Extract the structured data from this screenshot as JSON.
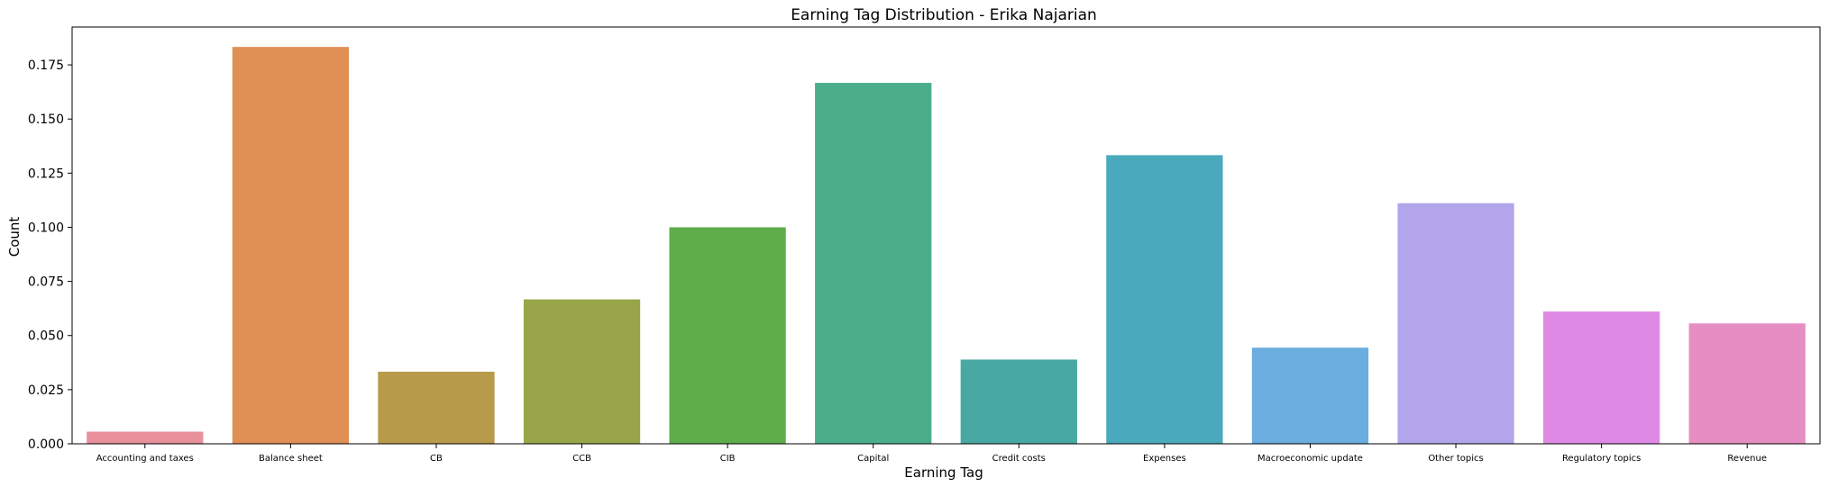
{
  "chart_data": {
    "type": "bar",
    "title": "Earning Tag Distribution - Erika Najarian",
    "xlabel": "Earning Tag",
    "ylabel": "Count",
    "categories": [
      "Accounting and taxes",
      "Balance sheet",
      "CB",
      "CCB",
      "CIB",
      "Capital",
      "Credit costs",
      "Expenses",
      "Macroeconomic update",
      "Other topics",
      "Regulatory topics",
      "Revenue"
    ],
    "values": [
      0.0056,
      0.1833,
      0.0333,
      0.0667,
      0.1,
      0.1667,
      0.0389,
      0.1333,
      0.0444,
      0.1111,
      0.0611,
      0.0556
    ],
    "colors": [
      "#e8909b",
      "#e08f55",
      "#b79a4a",
      "#98a548",
      "#5fad4a",
      "#4aae8a",
      "#48a9a2",
      "#4ba9bd",
      "#6aadde",
      "#b3a5eb",
      "#df8be6",
      "#e68ec3"
    ],
    "yticks": [
      "0.000",
      "0.025",
      "0.050",
      "0.075",
      "0.100",
      "0.125",
      "0.150",
      "0.175"
    ],
    "ylim": [
      0,
      0.1925
    ],
    "grid": false,
    "legend": "none"
  }
}
